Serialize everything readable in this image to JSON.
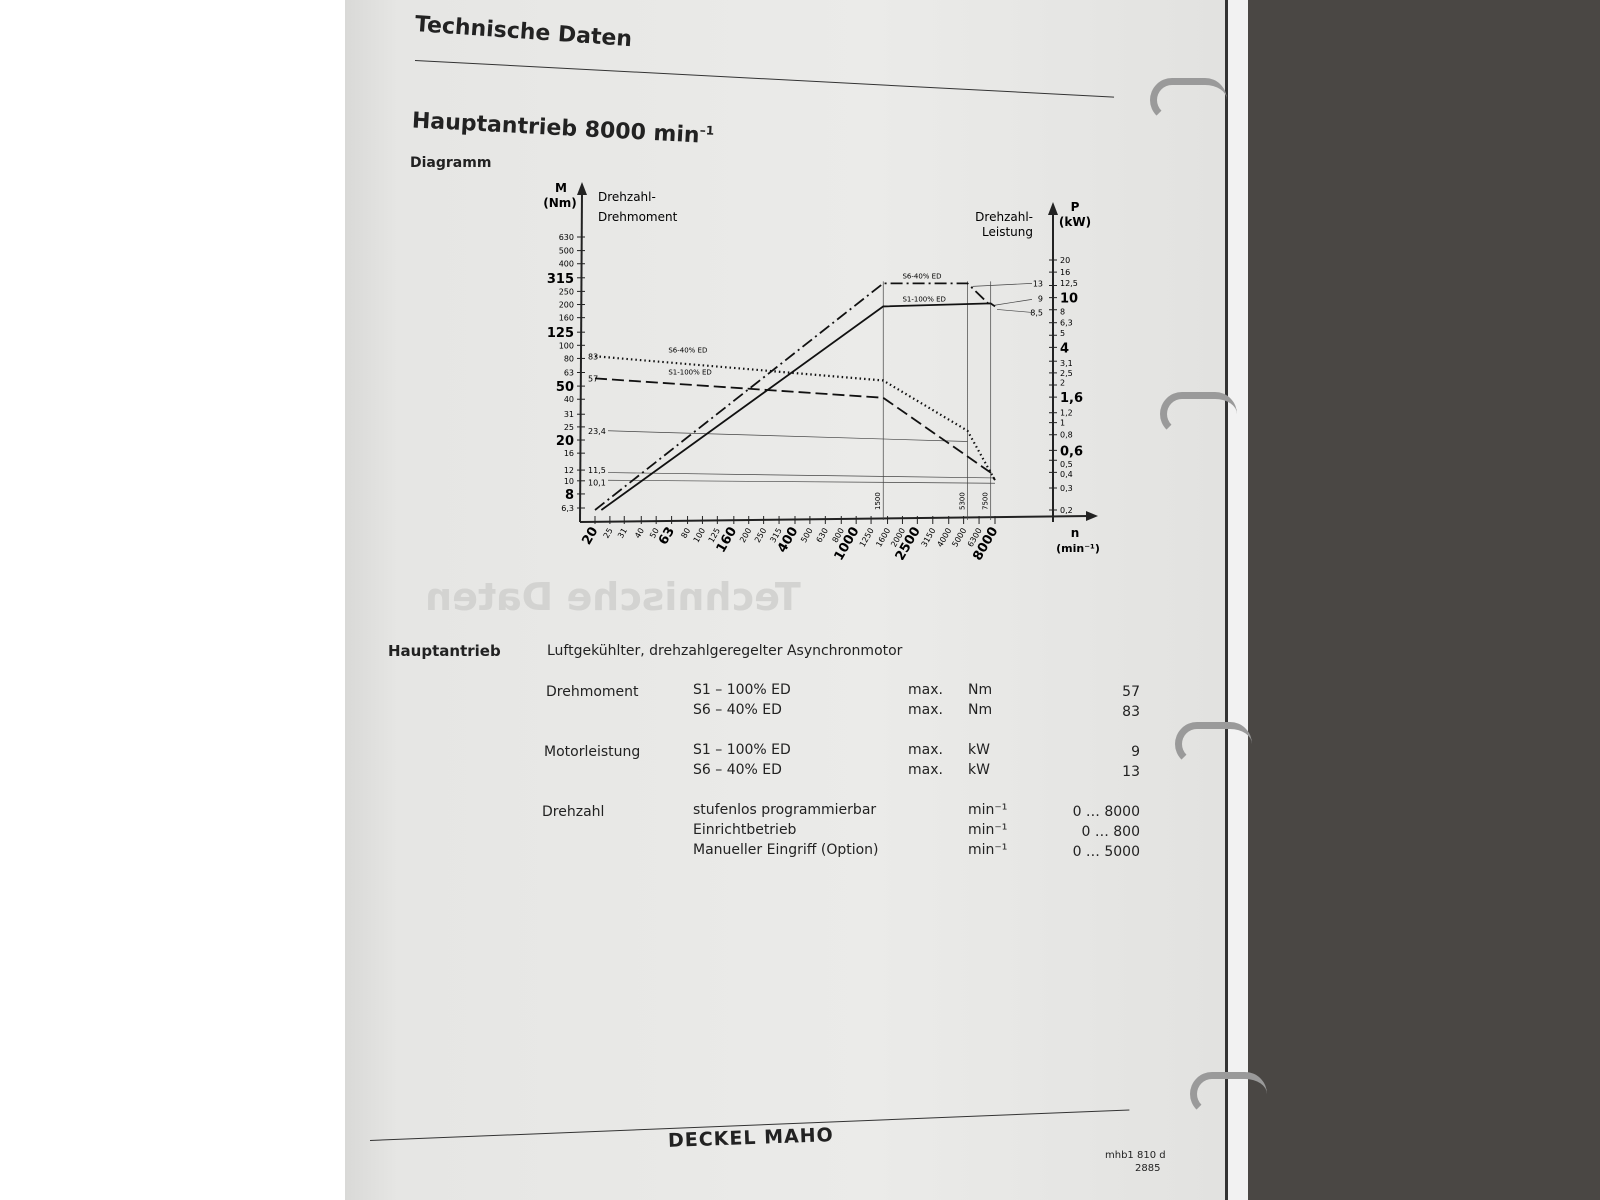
{
  "header": {
    "section_title": "Technische Daten",
    "heading": "Hauptantrieb 8000 min",
    "heading_sup": "–1",
    "subheading": "Diagramm"
  },
  "bleed_through": "Technische Daten",
  "chart_data": {
    "type": "line",
    "x_scale": "log",
    "y_scale": "log",
    "xlabel": "n",
    "xunit": "(min⁻¹)",
    "ylabel_left": "M",
    "yunit_left": "(Nm)",
    "left_caption": [
      "Drehzahl-",
      "Drehmoment"
    ],
    "ylabel_right": "P",
    "yunit_right": "(kW)",
    "right_caption": [
      "Drehzahl-",
      "Leistung"
    ],
    "xlim": [
      20,
      8000
    ],
    "ylim_left": [
      6.3,
      630
    ],
    "ylim_right": [
      0.2,
      20
    ],
    "x_ticks": [
      "20",
      "25",
      "31",
      "40",
      "50",
      "63",
      "80",
      "100",
      "125",
      "160",
      "200",
      "250",
      "315",
      "400",
      "500",
      "630",
      "800",
      "1000",
      "1250",
      "1600",
      "2000",
      "2500",
      "3150",
      "4000",
      "5000",
      "6300",
      "8000"
    ],
    "x_ticks_bold": [
      "20",
      "63",
      "160",
      "400",
      "1000",
      "2500",
      "8000"
    ],
    "left_ticks": [
      "6,3",
      "8",
      "10",
      "12",
      "16",
      "20",
      "25",
      "31",
      "40",
      "50",
      "63",
      "80",
      "100",
      "125",
      "160",
      "200",
      "250",
      "315",
      "400",
      "500",
      "630"
    ],
    "left_ticks_bold": [
      "8",
      "20",
      "50",
      "125",
      "315"
    ],
    "right_ticks": [
      "0,2",
      "0,3",
      "0,4",
      "0,5",
      "0,6",
      "0,8",
      "1",
      "1,2",
      "1,6",
      "2",
      "2,5",
      "3,1",
      "4",
      "5",
      "6,3",
      "8",
      "10",
      "12,5",
      "16",
      "20"
    ],
    "right_ticks_bold": [
      "0,6",
      "1,6",
      "4",
      "10"
    ],
    "speed_markers": [
      "1500",
      "5300",
      "7500"
    ],
    "series": [
      {
        "name": "S6-40% ED",
        "axis": "left",
        "style": "dotted",
        "x": [
          20,
          1500,
          5300,
          7500,
          8000
        ],
        "y": [
          83,
          55,
          23.4,
          11.5,
          10.1
        ]
      },
      {
        "name": "S1-100% ED",
        "axis": "left",
        "style": "dashed",
        "x": [
          20,
          1500,
          7500,
          8000
        ],
        "y": [
          57,
          41,
          11.5,
          10.1
        ]
      },
      {
        "name": "S6-40% ED",
        "axis": "right",
        "style": "dashdot",
        "x": [
          20,
          1500,
          5300,
          7500
        ],
        "y": [
          0.2,
          13,
          13,
          8.6
        ]
      },
      {
        "name": "S1-100% ED",
        "axis": "right",
        "style": "solid",
        "x": [
          22,
          1500,
          7500,
          8000
        ],
        "y": [
          0.2,
          8.5,
          9,
          8.5
        ]
      }
    ],
    "value_labels_left": [
      "83",
      "57",
      "23,4",
      "11,5",
      "10,1"
    ],
    "value_labels_right": [
      "13",
      "9",
      "8,5"
    ]
  },
  "specs": {
    "label": "Hauptantrieb",
    "description": "Luftgekühlter, drehzahlgeregelter Asynchronmotor",
    "groups": [
      {
        "name": "Drehmoment",
        "rows": [
          [
            "S1 – 100% ED",
            "max.",
            "Nm",
            "57"
          ],
          [
            "S6 – 40% ED",
            "max.",
            "Nm",
            "83"
          ]
        ]
      },
      {
        "name": "Motorleistung",
        "rows": [
          [
            "S1 – 100% ED",
            "max.",
            "kW",
            "9"
          ],
          [
            "S6 – 40% ED",
            "max.",
            "kW",
            "13"
          ]
        ]
      },
      {
        "name": "Drehzahl",
        "rows": [
          [
            "stufenlos programmierbar",
            "",
            "min⁻¹",
            "0 … 8000"
          ],
          [
            "Einrichtbetrieb",
            "",
            "min⁻¹",
            "0 … 800"
          ],
          [
            "Manueller Eingriff (Option)",
            "",
            "min⁻¹",
            "0 … 5000"
          ]
        ]
      }
    ]
  },
  "footer": {
    "brand": "DECKEL MAHO",
    "doc_code": "mhb1 810 d",
    "page": "2885"
  }
}
